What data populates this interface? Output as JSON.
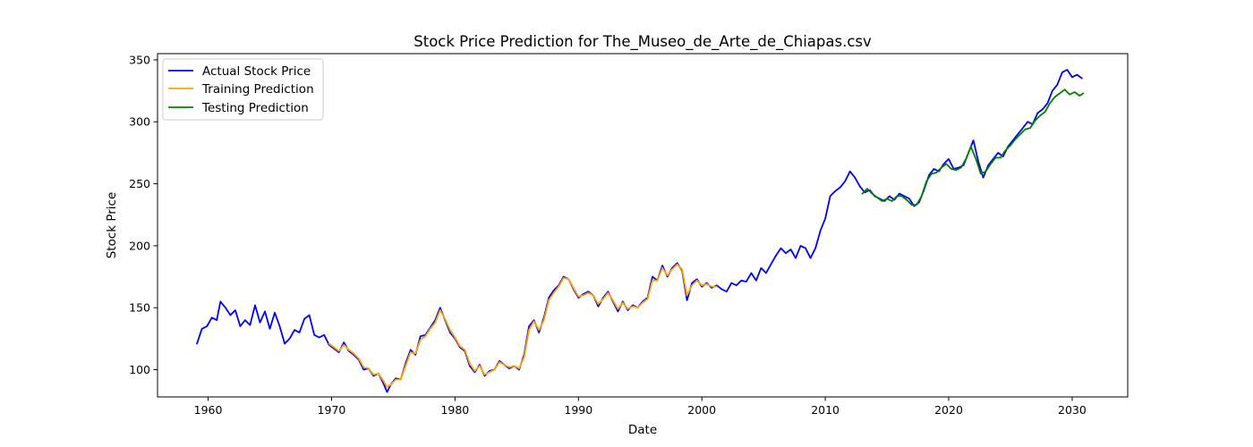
{
  "chart_data": {
    "type": "line",
    "title": "Stock Price Prediction for The_Museo_de_Arte_de_Chiapas.csv",
    "xlabel": "Date",
    "ylabel": "Stock Price",
    "xlim": [
      1955.9,
      2034.5
    ],
    "ylim": [
      78,
      355
    ],
    "x_ticks": [
      1960,
      1970,
      1980,
      1990,
      2000,
      2010,
      2020,
      2030
    ],
    "y_ticks": [
      100,
      150,
      200,
      250,
      300,
      350
    ],
    "grid": false,
    "legend_position": "upper-left",
    "series": [
      {
        "name": "Actual Stock Price",
        "color": "#0000ff",
        "points": [
          [
            1959.1,
            121
          ],
          [
            1959.5,
            133
          ],
          [
            1959.9,
            135
          ],
          [
            1960.3,
            142
          ],
          [
            1960.7,
            140
          ],
          [
            1961.0,
            155
          ],
          [
            1961.4,
            150
          ],
          [
            1961.8,
            144
          ],
          [
            1962.2,
            148
          ],
          [
            1962.6,
            135
          ],
          [
            1963.0,
            140
          ],
          [
            1963.4,
            136
          ],
          [
            1963.8,
            152
          ],
          [
            1964.2,
            138
          ],
          [
            1964.6,
            147
          ],
          [
            1965.0,
            133
          ],
          [
            1965.4,
            146
          ],
          [
            1965.8,
            135
          ],
          [
            1966.2,
            121
          ],
          [
            1966.6,
            125
          ],
          [
            1967.0,
            132
          ],
          [
            1967.4,
            130
          ],
          [
            1967.8,
            141
          ],
          [
            1968.2,
            144
          ],
          [
            1968.6,
            128
          ],
          [
            1969.0,
            126
          ],
          [
            1969.4,
            128
          ],
          [
            1969.8,
            120
          ],
          [
            1970.2,
            117
          ],
          [
            1970.6,
            114
          ],
          [
            1971.0,
            122
          ],
          [
            1971.4,
            115
          ],
          [
            1971.8,
            112
          ],
          [
            1972.2,
            108
          ],
          [
            1972.6,
            100
          ],
          [
            1973.0,
            101
          ],
          [
            1973.4,
            95
          ],
          [
            1973.8,
            97
          ],
          [
            1974.2,
            89
          ],
          [
            1974.5,
            82
          ],
          [
            1974.8,
            88
          ],
          [
            1975.2,
            93
          ],
          [
            1975.6,
            92
          ],
          [
            1976.0,
            105
          ],
          [
            1976.4,
            116
          ],
          [
            1976.8,
            112
          ],
          [
            1977.2,
            127
          ],
          [
            1977.6,
            128
          ],
          [
            1978.0,
            134
          ],
          [
            1978.4,
            140
          ],
          [
            1978.8,
            150
          ],
          [
            1979.2,
            140
          ],
          [
            1979.6,
            130
          ],
          [
            1980.0,
            125
          ],
          [
            1980.4,
            118
          ],
          [
            1980.8,
            115
          ],
          [
            1981.2,
            103
          ],
          [
            1981.6,
            98
          ],
          [
            1982.0,
            104
          ],
          [
            1982.4,
            95
          ],
          [
            1982.8,
            99
          ],
          [
            1983.2,
            100
          ],
          [
            1983.6,
            107
          ],
          [
            1984.0,
            104
          ],
          [
            1984.4,
            101
          ],
          [
            1984.8,
            103
          ],
          [
            1985.2,
            100
          ],
          [
            1985.6,
            112
          ],
          [
            1986.0,
            135
          ],
          [
            1986.4,
            140
          ],
          [
            1986.8,
            130
          ],
          [
            1987.2,
            142
          ],
          [
            1987.6,
            158
          ],
          [
            1988.0,
            164
          ],
          [
            1988.4,
            168
          ],
          [
            1988.8,
            175
          ],
          [
            1989.2,
            173
          ],
          [
            1989.6,
            165
          ],
          [
            1990.0,
            158
          ],
          [
            1990.4,
            161
          ],
          [
            1990.8,
            163
          ],
          [
            1991.2,
            160
          ],
          [
            1991.6,
            151
          ],
          [
            1992.0,
            158
          ],
          [
            1992.4,
            163
          ],
          [
            1992.8,
            155
          ],
          [
            1993.2,
            147
          ],
          [
            1993.6,
            155
          ],
          [
            1994.0,
            148
          ],
          [
            1994.4,
            152
          ],
          [
            1994.8,
            150
          ],
          [
            1995.2,
            155
          ],
          [
            1995.6,
            158
          ],
          [
            1996.0,
            175
          ],
          [
            1996.4,
            172
          ],
          [
            1996.8,
            184
          ],
          [
            1997.2,
            175
          ],
          [
            1997.6,
            182
          ],
          [
            1998.0,
            186
          ],
          [
            1998.4,
            180
          ],
          [
            1998.8,
            156
          ],
          [
            1999.2,
            170
          ],
          [
            1999.6,
            173
          ],
          [
            2000.0,
            167
          ],
          [
            2000.4,
            170
          ],
          [
            2000.8,
            166
          ],
          [
            2001.2,
            168
          ],
          [
            2001.6,
            165
          ],
          [
            2002.0,
            163
          ],
          [
            2002.4,
            170
          ],
          [
            2002.8,
            168
          ],
          [
            2003.2,
            172
          ],
          [
            2003.6,
            171
          ],
          [
            2004.0,
            178
          ],
          [
            2004.4,
            172
          ],
          [
            2004.8,
            182
          ],
          [
            2005.2,
            178
          ],
          [
            2005.6,
            185
          ],
          [
            2006.0,
            192
          ],
          [
            2006.4,
            198
          ],
          [
            2006.8,
            194
          ],
          [
            2007.2,
            197
          ],
          [
            2007.6,
            190
          ],
          [
            2008.0,
            200
          ],
          [
            2008.4,
            198
          ],
          [
            2008.8,
            190
          ],
          [
            2009.2,
            198
          ],
          [
            2009.6,
            212
          ],
          [
            2010.0,
            222
          ],
          [
            2010.4,
            240
          ],
          [
            2010.8,
            244
          ],
          [
            2011.2,
            247
          ],
          [
            2011.6,
            252
          ],
          [
            2012.0,
            260
          ],
          [
            2012.4,
            255
          ],
          [
            2012.8,
            248
          ],
          [
            2013.2,
            243
          ],
          [
            2013.6,
            245
          ],
          [
            2014.0,
            240
          ],
          [
            2014.4,
            238
          ],
          [
            2014.8,
            236
          ],
          [
            2015.2,
            240
          ],
          [
            2015.6,
            237
          ],
          [
            2016.0,
            242
          ],
          [
            2016.4,
            240
          ],
          [
            2016.8,
            238
          ],
          [
            2017.2,
            232
          ],
          [
            2017.6,
            235
          ],
          [
            2018.0,
            245
          ],
          [
            2018.4,
            257
          ],
          [
            2018.8,
            262
          ],
          [
            2019.2,
            260
          ],
          [
            2019.6,
            266
          ],
          [
            2020.0,
            270
          ],
          [
            2020.4,
            262
          ],
          [
            2020.8,
            263
          ],
          [
            2021.2,
            265
          ],
          [
            2021.6,
            275
          ],
          [
            2022.0,
            285
          ],
          [
            2022.4,
            268
          ],
          [
            2022.8,
            255
          ],
          [
            2023.2,
            265
          ],
          [
            2023.6,
            270
          ],
          [
            2024.0,
            275
          ],
          [
            2024.4,
            272
          ],
          [
            2024.8,
            280
          ],
          [
            2025.2,
            285
          ],
          [
            2025.6,
            290
          ],
          [
            2026.0,
            295
          ],
          [
            2026.4,
            300
          ],
          [
            2026.8,
            298
          ],
          [
            2027.2,
            307
          ],
          [
            2027.6,
            310
          ],
          [
            2028.0,
            315
          ],
          [
            2028.4,
            325
          ],
          [
            2028.8,
            330
          ],
          [
            2029.2,
            340
          ],
          [
            2029.6,
            342
          ],
          [
            2030.0,
            336
          ],
          [
            2030.4,
            338
          ],
          [
            2030.8,
            335
          ]
        ]
      },
      {
        "name": "Training Prediction",
        "color": "#ffa500",
        "points": [
          [
            1969.8,
            121
          ],
          [
            1970.2,
            118
          ],
          [
            1970.6,
            115
          ],
          [
            1971.0,
            120
          ],
          [
            1971.4,
            116
          ],
          [
            1971.8,
            113
          ],
          [
            1972.2,
            109
          ],
          [
            1972.6,
            102
          ],
          [
            1973.0,
            101
          ],
          [
            1973.4,
            96
          ],
          [
            1973.8,
            97
          ],
          [
            1974.2,
            91
          ],
          [
            1974.5,
            86
          ],
          [
            1974.8,
            88
          ],
          [
            1975.2,
            92
          ],
          [
            1975.6,
            92
          ],
          [
            1976.0,
            103
          ],
          [
            1976.4,
            114
          ],
          [
            1976.8,
            113
          ],
          [
            1977.2,
            124
          ],
          [
            1977.6,
            127
          ],
          [
            1978.0,
            133
          ],
          [
            1978.4,
            138
          ],
          [
            1978.8,
            148
          ],
          [
            1979.2,
            141
          ],
          [
            1979.6,
            132
          ],
          [
            1980.0,
            126
          ],
          [
            1980.4,
            119
          ],
          [
            1980.8,
            116
          ],
          [
            1981.2,
            105
          ],
          [
            1981.6,
            99
          ],
          [
            1982.0,
            103
          ],
          [
            1982.4,
            96
          ],
          [
            1982.8,
            98
          ],
          [
            1983.2,
            100
          ],
          [
            1983.6,
            106
          ],
          [
            1984.0,
            104
          ],
          [
            1984.4,
            102
          ],
          [
            1984.8,
            103
          ],
          [
            1985.2,
            101
          ],
          [
            1985.6,
            110
          ],
          [
            1986.0,
            132
          ],
          [
            1986.4,
            139
          ],
          [
            1986.8,
            132
          ],
          [
            1987.2,
            140
          ],
          [
            1987.6,
            156
          ],
          [
            1988.0,
            162
          ],
          [
            1988.4,
            167
          ],
          [
            1988.8,
            174
          ],
          [
            1989.2,
            173
          ],
          [
            1989.6,
            166
          ],
          [
            1990.0,
            159
          ],
          [
            1990.4,
            160
          ],
          [
            1990.8,
            162
          ],
          [
            1991.2,
            160
          ],
          [
            1991.6,
            153
          ],
          [
            1992.0,
            157
          ],
          [
            1992.4,
            162
          ],
          [
            1992.8,
            156
          ],
          [
            1993.2,
            149
          ],
          [
            1993.6,
            154
          ],
          [
            1994.0,
            149
          ],
          [
            1994.4,
            151
          ],
          [
            1994.8,
            150
          ],
          [
            1995.2,
            154
          ],
          [
            1995.6,
            157
          ],
          [
            1996.0,
            172
          ],
          [
            1996.4,
            172
          ],
          [
            1996.8,
            182
          ],
          [
            1997.2,
            176
          ],
          [
            1997.6,
            181
          ],
          [
            1998.0,
            185
          ],
          [
            1998.4,
            181
          ],
          [
            1998.8,
            160
          ],
          [
            1999.2,
            168
          ],
          [
            1999.6,
            172
          ],
          [
            2000.0,
            168
          ],
          [
            2000.4,
            169
          ],
          [
            2000.8,
            167
          ],
          [
            2001.2,
            167
          ]
        ]
      },
      {
        "name": "Testing Prediction",
        "color": "#008000",
        "points": [
          [
            2013.0,
            242
          ],
          [
            2013.4,
            246
          ],
          [
            2013.8,
            242
          ],
          [
            2014.2,
            239
          ],
          [
            2014.6,
            236
          ],
          [
            2015.0,
            238
          ],
          [
            2015.4,
            236
          ],
          [
            2015.8,
            240
          ],
          [
            2016.2,
            240
          ],
          [
            2016.6,
            237
          ],
          [
            2017.0,
            233
          ],
          [
            2017.4,
            233
          ],
          [
            2017.8,
            240
          ],
          [
            2018.2,
            252
          ],
          [
            2018.6,
            258
          ],
          [
            2019.0,
            259
          ],
          [
            2019.4,
            263
          ],
          [
            2019.8,
            266
          ],
          [
            2020.2,
            262
          ],
          [
            2020.6,
            261
          ],
          [
            2021.0,
            263
          ],
          [
            2021.4,
            270
          ],
          [
            2021.8,
            280
          ],
          [
            2022.2,
            270
          ],
          [
            2022.6,
            258
          ],
          [
            2023.0,
            260
          ],
          [
            2023.4,
            266
          ],
          [
            2023.8,
            271
          ],
          [
            2024.2,
            271
          ],
          [
            2024.6,
            277
          ],
          [
            2025.0,
            281
          ],
          [
            2025.4,
            286
          ],
          [
            2025.8,
            290
          ],
          [
            2026.2,
            294
          ],
          [
            2026.6,
            295
          ],
          [
            2027.0,
            301
          ],
          [
            2027.4,
            305
          ],
          [
            2027.8,
            308
          ],
          [
            2028.2,
            315
          ],
          [
            2028.6,
            320
          ],
          [
            2029.0,
            323
          ],
          [
            2029.4,
            326
          ],
          [
            2029.8,
            322
          ],
          [
            2030.2,
            324
          ],
          [
            2030.6,
            321
          ],
          [
            2030.9,
            323
          ]
        ]
      }
    ]
  }
}
